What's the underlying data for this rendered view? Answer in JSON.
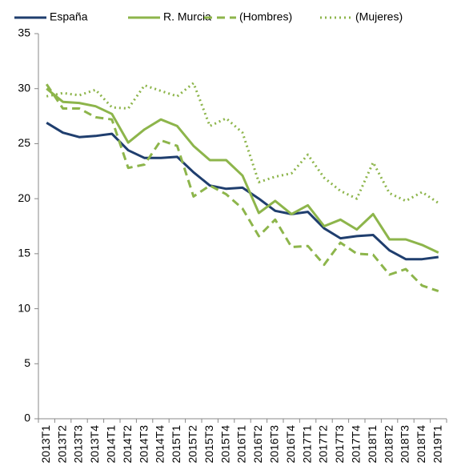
{
  "chart_data": {
    "type": "line",
    "categories": [
      "2013T1",
      "2013T2",
      "2013T3",
      "2013T4",
      "2014T1",
      "2014T2",
      "2014T3",
      "2014T4",
      "2015T1",
      "2015T2",
      "2015T3",
      "2015T4",
      "2016T1",
      "2016T2",
      "2016T3",
      "2016T4",
      "2017T1",
      "2017T2",
      "2017T3",
      "2017T4",
      "2018T1",
      "2018T2",
      "2018T3",
      "2018T4",
      "2019T1"
    ],
    "series": [
      {
        "name": "España",
        "color": "#1f3e6e",
        "dash": "solid",
        "values": [
          26.9,
          26.0,
          25.6,
          25.7,
          25.9,
          24.4,
          23.7,
          23.7,
          23.8,
          22.4,
          21.2,
          20.9,
          21.0,
          20.0,
          18.9,
          18.6,
          18.8,
          17.3,
          16.4,
          16.6,
          16.7,
          15.3,
          14.5,
          14.5,
          14.7
        ]
      },
      {
        "name": "R. Murcia",
        "color": "#8db54b",
        "dash": "solid",
        "values": [
          30.0,
          28.8,
          28.7,
          28.4,
          27.7,
          25.1,
          26.3,
          27.2,
          26.6,
          24.8,
          23.5,
          23.5,
          22.1,
          18.7,
          19.8,
          18.6,
          19.4,
          17.5,
          18.1,
          17.2,
          18.6,
          16.3,
          16.3,
          15.8,
          15.1
        ]
      },
      {
        "name": "(Hombres)",
        "color": "#8db54b",
        "dash": "dashed",
        "values": [
          30.4,
          28.2,
          28.2,
          27.4,
          27.2,
          22.8,
          23.1,
          25.3,
          24.8,
          20.2,
          21.2,
          20.4,
          19.1,
          16.6,
          18.1,
          15.6,
          15.7,
          14.0,
          16.0,
          15.0,
          14.9,
          13.1,
          13.6,
          12.1,
          11.6
        ]
      },
      {
        "name": "(Mujeres)",
        "color": "#8db54b",
        "dash": "dotted",
        "values": [
          29.3,
          29.6,
          29.4,
          29.9,
          28.3,
          28.2,
          30.3,
          29.8,
          29.3,
          30.5,
          26.6,
          27.3,
          26.0,
          21.5,
          22.0,
          22.3,
          24.0,
          21.9,
          20.7,
          20.0,
          23.3,
          20.5,
          19.8,
          20.6,
          19.6
        ]
      }
    ],
    "ylim": [
      0,
      35
    ],
    "yticks": [
      0,
      5,
      10,
      15,
      20,
      25,
      30,
      35
    ],
    "grid": false,
    "legend": "top"
  }
}
